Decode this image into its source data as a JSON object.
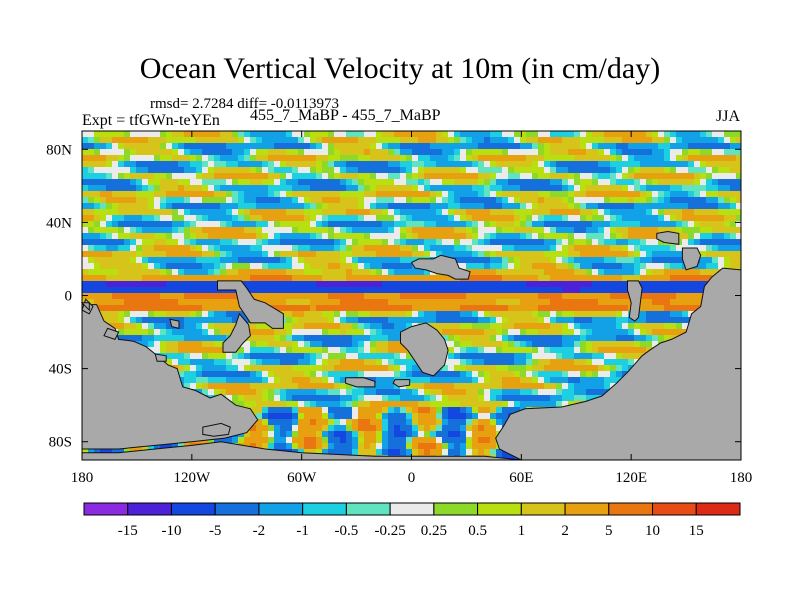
{
  "chart_data": {
    "type": "heatmap",
    "title": "Ocean Vertical Velocity at 10m (in cm/day)",
    "stats_text": "rmsd= 2.7284 diff= -0.0113973",
    "subtitle": "455_7_MaBP - 455_7_MaBP",
    "left_label": "Expt = tfGWn-teYEn",
    "right_label": "JJA",
    "xaxis": {
      "range": [
        -180,
        180
      ],
      "ticks": [
        -180,
        -120,
        -60,
        0,
        60,
        120,
        180
      ],
      "tick_labels": [
        "180",
        "120W",
        "60W",
        "0",
        "60E",
        "120E",
        "180"
      ]
    },
    "yaxis": {
      "range": [
        -90,
        90
      ],
      "ticks": [
        80,
        40,
        0,
        -40,
        -80
      ],
      "tick_labels": [
        "80N",
        "40N",
        "0",
        "40S",
        "80S"
      ]
    },
    "colorbar": {
      "levels": [
        -15,
        -10,
        -5,
        -2,
        -1,
        -0.5,
        -0.25,
        0.25,
        0.5,
        1,
        2,
        5,
        10,
        15
      ],
      "level_labels": [
        "-15",
        "-10",
        "-5",
        "-2",
        "-1",
        "-0.5",
        "-0.25",
        "0.25",
        "0.5",
        "1",
        "2",
        "5",
        "10",
        "15"
      ],
      "colors": [
        "#8a2be2",
        "#4b22d8",
        "#1446e0",
        "#1670dc",
        "#12a0e6",
        "#1dcfe0",
        "#5fe3c0",
        "#ebebeb",
        "#8cd92a",
        "#b8df10",
        "#d6c41a",
        "#e6a010",
        "#ea7612",
        "#e84c16",
        "#dd2a14"
      ]
    },
    "land_color": "#a9a9a9"
  }
}
